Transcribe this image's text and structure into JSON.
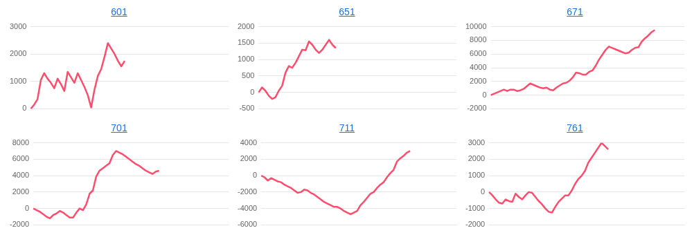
{
  "chart_data": [
    {
      "type": "line",
      "title": "601",
      "categories": [
        null,
        null,
        null,
        null,
        null,
        null,
        null,
        null,
        null,
        null,
        null,
        null,
        null,
        null,
        null,
        null,
        null,
        null,
        null,
        null,
        null,
        null,
        null,
        null,
        null,
        null,
        null,
        null,
        null,
        null,
        null,
        null,
        null,
        null,
        null,
        null,
        null,
        null,
        null,
        null,
        null,
        null,
        null,
        null,
        null,
        null,
        null,
        null,
        null,
        null,
        null,
        null,
        null,
        null,
        null,
        null,
        null,
        null,
        null,
        null
      ],
      "series": [
        {
          "color": "#ff4d6d",
          "values": [
            0,
            150,
            350,
            1050,
            1300,
            1100,
            950,
            750,
            1100,
            900,
            650,
            1350,
            1150,
            950,
            1300,
            1050,
            800,
            500,
            50,
            700,
            1200,
            1450,
            1900,
            2400,
            2200,
            2000,
            1750,
            1550,
            1750,
            null,
            null,
            null,
            null,
            null,
            null,
            null,
            null,
            null,
            null,
            null,
            null,
            null,
            null,
            null,
            null,
            null,
            null,
            null,
            null,
            null,
            null,
            null,
            null,
            null,
            null,
            null,
            null,
            null,
            null,
            null
          ]
        }
      ],
      "ylim": [
        0,
        3000
      ],
      "yticks": [
        0,
        1000,
        2000,
        3000
      ],
      "grid": "y",
      "tick_labels": "y",
      "marker": "none",
      "line_style": "solid"
    },
    {
      "type": "line",
      "title": "651",
      "categories": [
        null,
        null,
        null,
        null,
        null,
        null,
        null,
        null,
        null,
        null,
        null,
        null,
        null,
        null,
        null,
        null,
        null,
        null,
        null,
        null,
        null,
        null,
        null,
        null,
        null,
        null,
        null,
        null,
        null,
        null,
        null,
        null,
        null,
        null,
        null,
        null,
        null,
        null,
        null,
        null,
        null,
        null,
        null,
        null,
        null,
        null,
        null,
        null,
        null,
        null,
        null,
        null,
        null,
        null,
        null,
        null,
        null,
        null,
        null,
        null
      ],
      "series": [
        {
          "color": "#ff4d6d",
          "values": [
            0,
            150,
            50,
            -100,
            -200,
            -150,
            50,
            200,
            600,
            800,
            750,
            900,
            1100,
            1300,
            1280,
            1550,
            1450,
            1300,
            1200,
            1300,
            1450,
            1600,
            1450,
            1350,
            null,
            null,
            null,
            null,
            null,
            null,
            null,
            null,
            null,
            null,
            null,
            null,
            null,
            null,
            null,
            null,
            null,
            null,
            null,
            null,
            null,
            null,
            null,
            null,
            null,
            null,
            null,
            null,
            null,
            null,
            null,
            null,
            null,
            null,
            null,
            null
          ]
        }
      ],
      "ylim": [
        -500,
        2000
      ],
      "yticks": [
        -500,
        0,
        500,
        1000,
        1500,
        2000
      ],
      "grid": "y",
      "tick_labels": "y",
      "marker": "none",
      "line_style": "solid"
    },
    {
      "type": "line",
      "title": "671",
      "categories": [
        null,
        null,
        null,
        null,
        null,
        null,
        null,
        null,
        null,
        null,
        null,
        null,
        null,
        null,
        null,
        null,
        null,
        null,
        null,
        null,
        null,
        null,
        null,
        null,
        null,
        null,
        null,
        null,
        null,
        null,
        null,
        null,
        null,
        null,
        null,
        null,
        null,
        null,
        null,
        null,
        null,
        null,
        null,
        null,
        null,
        null,
        null,
        null,
        null,
        null,
        null,
        null,
        null,
        null,
        null,
        null,
        null,
        null,
        null,
        null
      ],
      "series": [
        {
          "color": "#ff4d6d",
          "values": [
            0,
            200,
            400,
            600,
            800,
            600,
            800,
            800,
            600,
            700,
            900,
            1300,
            1700,
            1500,
            1300,
            1100,
            1000,
            1100,
            800,
            700,
            1100,
            1400,
            1700,
            1800,
            2100,
            2600,
            3300,
            3200,
            3000,
            3000,
            3400,
            3600,
            4300,
            5200,
            5900,
            6600,
            7100,
            6900,
            6700,
            6500,
            6300,
            6100,
            6200,
            6600,
            6900,
            7000,
            7800,
            8300,
            8700,
            9200,
            9500,
            null,
            null,
            null,
            null,
            null,
            null,
            null,
            null,
            null
          ]
        }
      ],
      "ylim": [
        -2000,
        10000
      ],
      "yticks": [
        -2000,
        0,
        2000,
        4000,
        6000,
        8000,
        10000
      ],
      "grid": "y",
      "tick_labels": "y",
      "marker": "none",
      "line_style": "solid"
    },
    {
      "type": "line",
      "title": "701",
      "categories": [
        null,
        null,
        null,
        null,
        null,
        null,
        null,
        null,
        null,
        null,
        null,
        null,
        null,
        null,
        null,
        null,
        null,
        null,
        null,
        null,
        null,
        null,
        null,
        null,
        null,
        null,
        null,
        null,
        null,
        null,
        null,
        null,
        null,
        null,
        null,
        null,
        null,
        null,
        null,
        null,
        null,
        null,
        null,
        null,
        null,
        null,
        null,
        null,
        null,
        null,
        null,
        null,
        null,
        null,
        null,
        null,
        null,
        null,
        null,
        null
      ],
      "series": [
        {
          "color": "#ff4d6d",
          "values": [
            0,
            -200,
            -400,
            -700,
            -1000,
            -1200,
            -800,
            -600,
            -300,
            -500,
            -800,
            -1100,
            -1100,
            -500,
            0,
            -200,
            500,
            1800,
            2200,
            3900,
            4600,
            4900,
            5200,
            5500,
            6500,
            7000,
            6800,
            6600,
            6300,
            6000,
            5700,
            5400,
            5200,
            4900,
            4600,
            4400,
            4200,
            4500,
            4600,
            null,
            null,
            null,
            null,
            null,
            null,
            null,
            null,
            null,
            null,
            null,
            null,
            null,
            null,
            null,
            null,
            null,
            null,
            null,
            null,
            null
          ]
        }
      ],
      "ylim": [
        -2000,
        8000
      ],
      "yticks": [
        -2000,
        0,
        2000,
        4000,
        6000,
        8000
      ],
      "grid": "y",
      "tick_labels": "y",
      "marker": "none",
      "line_style": "solid"
    },
    {
      "type": "line",
      "title": "711",
      "categories": [
        null,
        null,
        null,
        null,
        null,
        null,
        null,
        null,
        null,
        null,
        null,
        null,
        null,
        null,
        null,
        null,
        null,
        null,
        null,
        null,
        null,
        null,
        null,
        null,
        null,
        null,
        null,
        null,
        null,
        null,
        null,
        null,
        null,
        null,
        null,
        null,
        null,
        null,
        null,
        null,
        null,
        null,
        null,
        null,
        null,
        null,
        null,
        null,
        null,
        null,
        null,
        null,
        null,
        null,
        null,
        null,
        null,
        null,
        null,
        null
      ],
      "series": [
        {
          "color": "#ff4d6d",
          "values": [
            0,
            -200,
            -600,
            -300,
            -500,
            -700,
            -800,
            -1100,
            -1300,
            -1500,
            -1800,
            -2100,
            -2000,
            -1700,
            -1800,
            -2100,
            -2300,
            -2600,
            -2900,
            -3200,
            -3400,
            -3600,
            -3800,
            -3800,
            -4000,
            -4300,
            -4500,
            -4700,
            -4500,
            -4300,
            -3600,
            -3200,
            -2700,
            -2200,
            -2000,
            -1500,
            -1100,
            -800,
            -200,
            300,
            700,
            1700,
            2100,
            2400,
            2800,
            3000,
            null,
            null,
            null,
            null,
            null,
            null,
            null,
            null,
            null,
            null,
            null,
            null,
            null,
            null
          ]
        }
      ],
      "ylim": [
        -6000,
        4000
      ],
      "yticks": [
        -6000,
        -4000,
        -2000,
        0,
        2000,
        4000
      ],
      "grid": "y",
      "tick_labels": "y",
      "marker": "none",
      "line_style": "solid"
    },
    {
      "type": "line",
      "title": "761",
      "categories": [
        null,
        null,
        null,
        null,
        null,
        null,
        null,
        null,
        null,
        null,
        null,
        null,
        null,
        null,
        null,
        null,
        null,
        null,
        null,
        null,
        null,
        null,
        null,
        null,
        null,
        null,
        null,
        null,
        null,
        null,
        null,
        null,
        null,
        null,
        null,
        null,
        null,
        null,
        null,
        null,
        null,
        null,
        null,
        null,
        null,
        null,
        null,
        null,
        null,
        null,
        null,
        null,
        null,
        null,
        null,
        null,
        null,
        null,
        null,
        null
      ],
      "series": [
        {
          "color": "#ff4d6d",
          "values": [
            0,
            -200,
            -450,
            -650,
            -700,
            -450,
            -550,
            -600,
            -100,
            -300,
            -450,
            -200,
            0,
            -50,
            -300,
            -550,
            -750,
            -1000,
            -1200,
            -1250,
            -900,
            -600,
            -400,
            -200,
            -200,
            100,
            500,
            800,
            1000,
            1300,
            1800,
            2100,
            2400,
            2700,
            3000,
            2800,
            2600,
            null,
            null,
            null,
            null,
            null,
            null,
            null,
            null,
            null,
            null,
            null,
            null,
            null,
            null,
            null,
            null,
            null,
            null,
            null,
            null,
            null,
            null,
            null
          ]
        }
      ],
      "ylim": [
        -2000,
        3000
      ],
      "yticks": [
        -2000,
        -1000,
        0,
        1000,
        2000,
        3000
      ],
      "grid": "y",
      "tick_labels": "y",
      "marker": "none",
      "line_style": "solid"
    }
  ]
}
